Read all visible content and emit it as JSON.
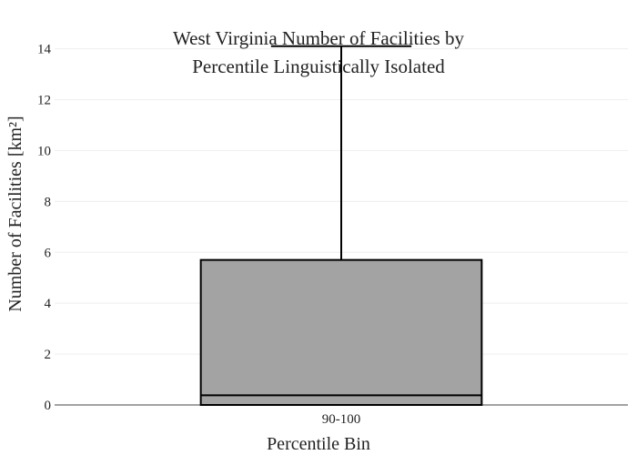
{
  "chart_data": {
    "type": "box",
    "title_lines": [
      "West Virginia Number of Facilities by",
      "Percentile Linguistically Isolated"
    ],
    "xlabel": "Percentile Bin",
    "ylabel": "Number of Facilities  [km²]",
    "ylim": [
      0,
      14.2
    ],
    "yticks": [
      0,
      2,
      4,
      6,
      8,
      10,
      12,
      14
    ],
    "ytick_labels": [
      "0",
      "2",
      "4",
      "6",
      "8",
      "10",
      "12",
      "14"
    ],
    "grid": true,
    "categories": [
      "90-100"
    ],
    "boxes": [
      {
        "category": "90-100",
        "min": 0,
        "q1": 0,
        "median": 0.38,
        "q3": 5.7,
        "max": 14.1
      }
    ],
    "box_color": "#a3a3a3",
    "line_color": "#000000"
  }
}
